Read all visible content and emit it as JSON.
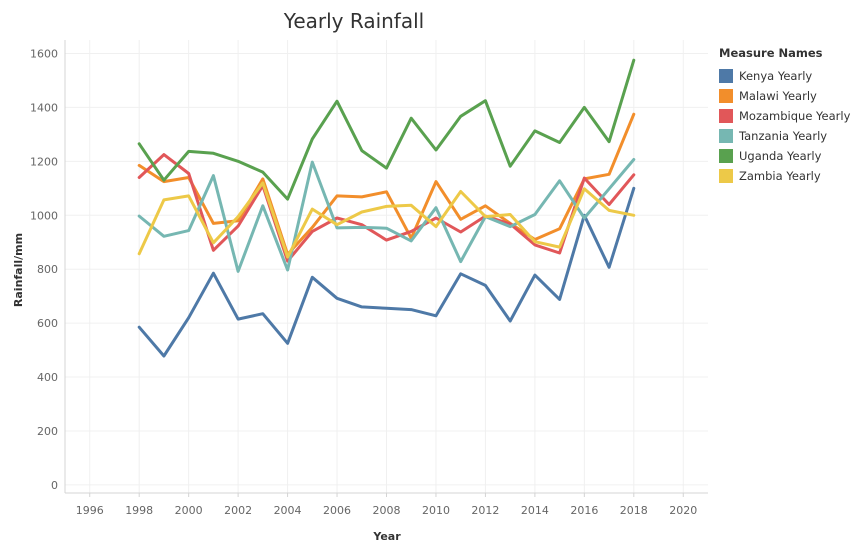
{
  "chart_data": {
    "type": "line",
    "title": "Yearly Rainfall",
    "xlabel": "Year",
    "ylabel": "Rainfall/mm",
    "xlim": [
      1995,
      2021
    ],
    "ylim": [
      -30,
      1650
    ],
    "x_ticks": [
      1996,
      1998,
      2000,
      2002,
      2004,
      2006,
      2008,
      2010,
      2012,
      2014,
      2016,
      2018,
      2020
    ],
    "y_ticks": [
      0,
      200,
      400,
      600,
      800,
      1000,
      1200,
      1400,
      1600
    ],
    "grid": true,
    "legend_title": "Measure Names",
    "legend_position": "right",
    "x": [
      1998,
      1999,
      2000,
      2001,
      2002,
      2003,
      2004,
      2005,
      2006,
      2007,
      2008,
      2009,
      2010,
      2011,
      2012,
      2013,
      2014,
      2015,
      2016,
      2017,
      2018
    ],
    "series": [
      {
        "name": "Kenya Yearly",
        "color": "#4e79a7",
        "values": [
          585,
          478,
          620,
          785,
          615,
          635,
          525,
          770,
          692,
          660,
          655,
          650,
          627,
          783,
          740,
          608,
          778,
          688,
          1000,
          807,
          1100
        ]
      },
      {
        "name": "Malawi Yearly",
        "color": "#f28e2b",
        "values": [
          1185,
          1125,
          1140,
          970,
          980,
          1135,
          855,
          955,
          1072,
          1068,
          1087,
          915,
          1125,
          985,
          1035,
          970,
          910,
          950,
          1135,
          1152,
          1375
        ]
      },
      {
        "name": "Mozambique Yearly",
        "color": "#e15759",
        "values": [
          1140,
          1225,
          1155,
          870,
          960,
          1110,
          830,
          940,
          990,
          965,
          908,
          940,
          990,
          938,
          997,
          968,
          890,
          860,
          1138,
          1040,
          1150
        ]
      },
      {
        "name": "Tanzania Yearly",
        "color": "#76b7b2",
        "values": [
          997,
          922,
          943,
          1147,
          792,
          1035,
          797,
          1197,
          953,
          955,
          952,
          905,
          1028,
          828,
          995,
          958,
          1003,
          1128,
          990,
          1098,
          1207
        ]
      },
      {
        "name": "Uganda Yearly",
        "color": "#59a14f",
        "values": [
          1265,
          1130,
          1237,
          1230,
          1200,
          1160,
          1060,
          1283,
          1423,
          1240,
          1175,
          1360,
          1242,
          1367,
          1425,
          1182,
          1313,
          1270,
          1400,
          1273,
          1575
        ]
      },
      {
        "name": "Zambia Yearly",
        "color": "#edc948",
        "values": [
          857,
          1057,
          1072,
          898,
          995,
          1120,
          845,
          1023,
          965,
          1012,
          1033,
          1037,
          958,
          1088,
          995,
          1003,
          902,
          882,
          1098,
          1018,
          1000
        ]
      }
    ]
  }
}
